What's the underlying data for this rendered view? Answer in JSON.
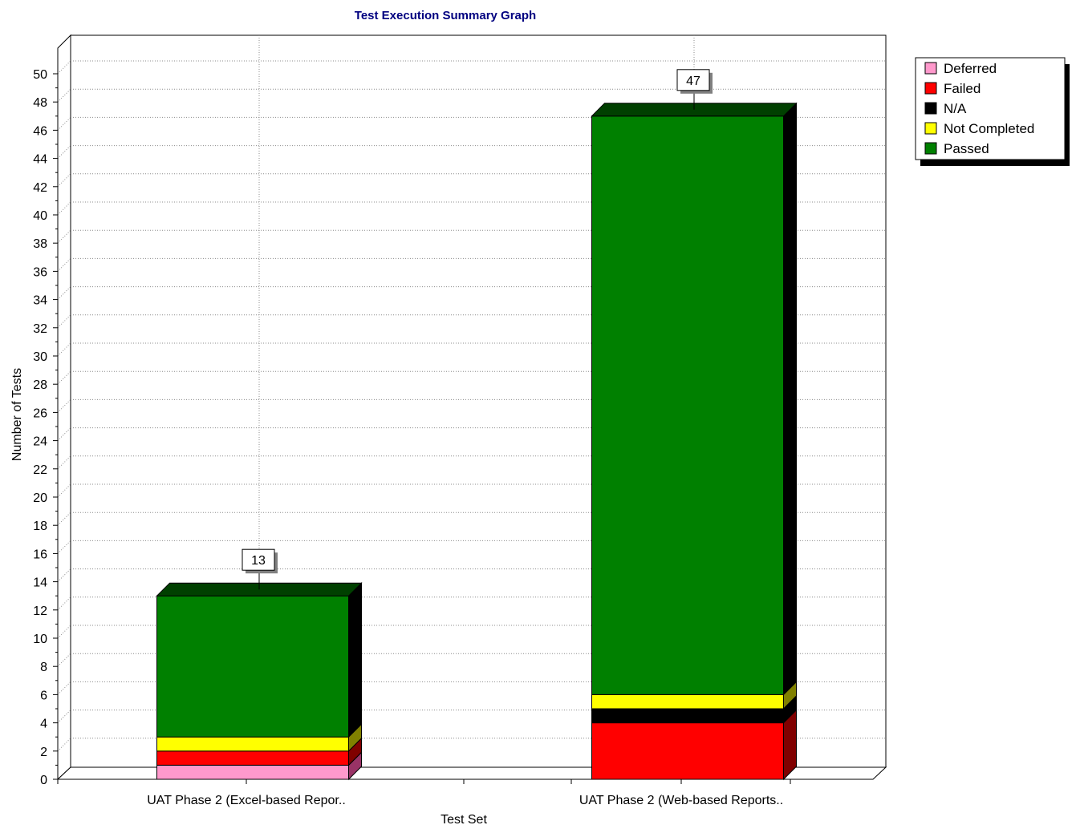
{
  "chart_data": {
    "type": "bar",
    "stacked": true,
    "title": "Test Execution Summary Graph",
    "xlabel": "Test Set",
    "ylabel": "Number of Tests",
    "ylim": [
      0,
      52
    ],
    "yticks": [
      0,
      2,
      4,
      6,
      8,
      10,
      12,
      14,
      16,
      18,
      20,
      22,
      24,
      26,
      28,
      30,
      32,
      34,
      36,
      38,
      40,
      42,
      44,
      46,
      48,
      50
    ],
    "categories": [
      "UAT Phase 2 (Excel-based Repor..",
      "UAT Phase 2 (Web-based Reports.."
    ],
    "series": [
      {
        "name": "Deferred",
        "values": [
          1,
          0
        ],
        "color": "#ff99cc",
        "side_color": "#993366"
      },
      {
        "name": "Failed",
        "values": [
          1,
          4
        ],
        "color": "#ff0000",
        "side_color": "#800000"
      },
      {
        "name": "N/A",
        "values": [
          0,
          1
        ],
        "color": "#000000",
        "side_color": "#000000"
      },
      {
        "name": "Not Completed",
        "values": [
          1,
          1
        ],
        "color": "#ffff00",
        "side_color": "#808000"
      },
      {
        "name": "Passed",
        "values": [
          10,
          41
        ],
        "color": "#008000",
        "side_color": "#000000",
        "top_color": "#004000"
      }
    ],
    "totals": [
      "13",
      "47"
    ],
    "legend_position": "top-right",
    "grid": true,
    "three_d": true
  }
}
